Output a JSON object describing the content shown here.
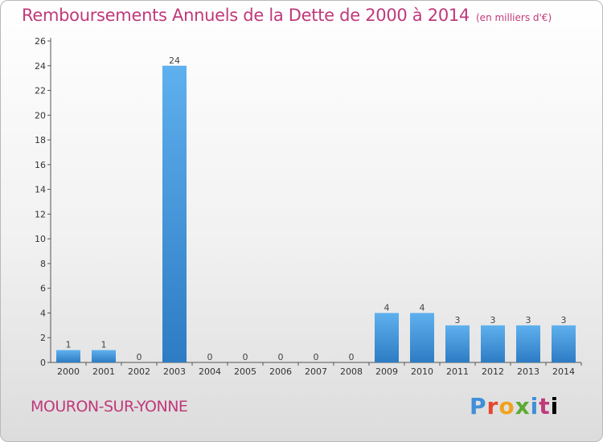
{
  "header": {
    "title": "Remboursements Annuels de la Dette de 2000 à 2014",
    "unit": "(en milliers d'€)"
  },
  "footer": {
    "commune": "MOURON-SUR-YONNE",
    "logo_letters": [
      "P",
      "r",
      "o",
      "x",
      "i",
      "t",
      "i"
    ]
  },
  "colors": {
    "title": "#c0397a",
    "bar_top": "#5fb0ee",
    "bar_bottom": "#2d7cc4"
  },
  "chart_data": {
    "type": "bar",
    "title": "Remboursements Annuels de la Dette de 2000 à 2014",
    "categories": [
      "2000",
      "2001",
      "2002",
      "2003",
      "2004",
      "2005",
      "2006",
      "2007",
      "2008",
      "2009",
      "2010",
      "2011",
      "2012",
      "2013",
      "2014"
    ],
    "values": [
      1,
      1,
      0,
      24,
      0,
      0,
      0,
      0,
      0,
      4,
      4,
      3,
      3,
      3,
      3
    ],
    "ylim": [
      0,
      26
    ],
    "yticks": [
      0,
      2,
      4,
      6,
      8,
      10,
      12,
      14,
      16,
      18,
      20,
      22,
      24,
      26
    ],
    "xlabel": "",
    "ylabel": "",
    "grid": false,
    "data_labels": true
  }
}
